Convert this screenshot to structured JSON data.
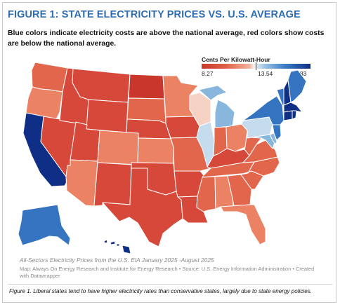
{
  "title": "FIGURE 1: STATE ELECTRICITY PRICES VS. U.S. AVERAGE",
  "subtitle": "Blue colors indicate electricity costs are above the national average, red colors show costs are below the national average.",
  "legend": {
    "title": "Cents Per Kilowatt-Hour",
    "min": "8.27",
    "mid": "13.54",
    "max": "38.83"
  },
  "colors": {
    "title": "#2f6db3",
    "red_dark": "#c9362b",
    "red": "#d5483a",
    "red_light": "#e2664c",
    "salmon": "#ea8263",
    "pale_pink": "#f6d2c4",
    "pale_blue": "#c5dbee",
    "light_blue": "#88b6dc",
    "blue": "#3574c0",
    "navy": "#0f2f86"
  },
  "source_line": "All-Sectors Electricity Prices from the U.S. EIA January 2025 -August 2025",
  "credit_line": "Map: Always On Energy Research and Institute for Energy Research • Source: U.S. Energy Information Administration • Created with Datawrapper",
  "caption": "Figure 1. Liberal states tend to have higher electricity rates than conservative states, largely due to state energy policies.",
  "states": {
    "WA": "red-light",
    "OR": "salmon",
    "CA": "navy",
    "NV": "red",
    "ID": "red",
    "MT": "red",
    "WY": "red",
    "UT": "red",
    "AZ": "salmon",
    "CO": "salmon",
    "NM": "red",
    "ND": "red-dark",
    "SD": "red-light",
    "NE": "red",
    "KS": "salmon",
    "OK": "red",
    "TX": "red",
    "MN": "salmon",
    "IA": "red",
    "MO": "red-light",
    "AR": "red",
    "LA": "red",
    "WI": "pale-pink",
    "IL": "pale-blue",
    "MI": "light-blue",
    "IN": "red-light",
    "OH": "salmon",
    "KY": "red",
    "TN": "red-light",
    "MS": "red-light",
    "AL": "salmon",
    "GA": "red-light",
    "FL": "salmon",
    "SC": "red-light",
    "NC": "red-light",
    "VA": "red-light",
    "WV": "red-light",
    "PA": "pale-blue",
    "NY": "blue",
    "VT": "blue",
    "NH": "navy",
    "ME": "blue",
    "MA": "navy",
    "CT": "navy",
    "RI": "navy",
    "NJ": "blue",
    "DE": "light-blue",
    "MD": "light-blue",
    "AK": "blue",
    "HI": "navy"
  }
}
